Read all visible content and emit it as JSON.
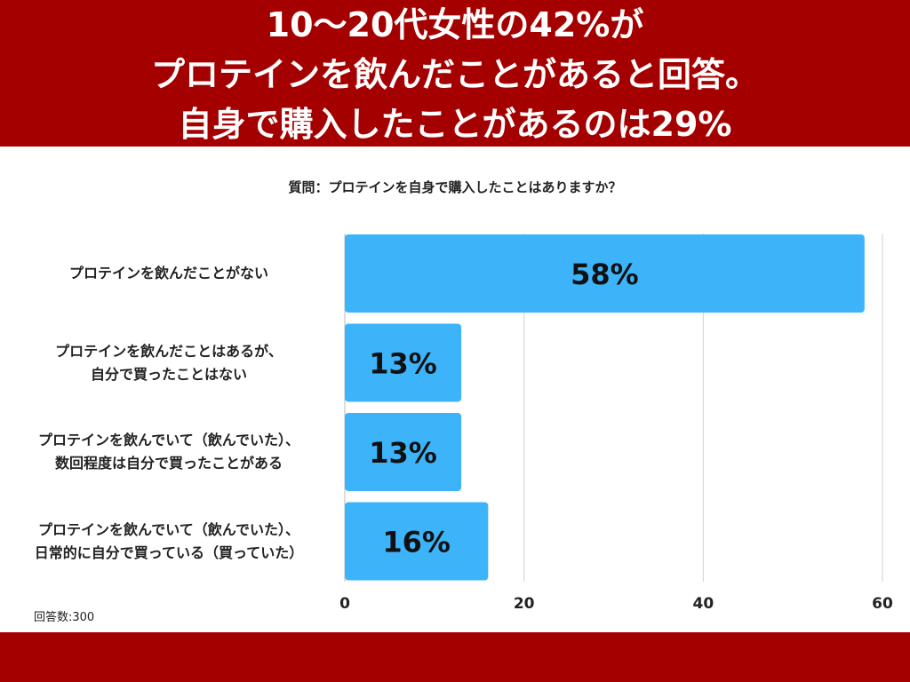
{
  "header": {
    "lines": [
      "10〜20代女性の42%が",
      "プロテインを飲んだことがあると回答。",
      "自身で購入したことがあるのは29%"
    ]
  },
  "question": "質問：プロテインを自身で購入したことはありますか？",
  "footnote": "回答数:300",
  "colors": {
    "brand": "#a50000",
    "bar": "#3db4fa",
    "grid": "#d0d0d0"
  },
  "chart_data": {
    "type": "bar",
    "orientation": "horizontal",
    "title": "",
    "xlabel": "",
    "ylabel": "",
    "xlim": [
      0,
      60
    ],
    "xticks": [
      0,
      20,
      40,
      60
    ],
    "grid": true,
    "categories": [
      [
        "プロテインを飲んだことがない"
      ],
      [
        "プロテインを飲んだことはあるが、",
        "自分で買ったことはない"
      ],
      [
        "プロテインを飲んでいて（飲んでいた）、",
        "数回程度は自分で買ったことがある"
      ],
      [
        "プロテインを飲んでいて（飲んでいた）、",
        "日常的に自分で買っている（買っていた）"
      ]
    ],
    "values": [
      58,
      13,
      13,
      16
    ],
    "data_labels": [
      "58%",
      "13%",
      "13%",
      "16%"
    ]
  }
}
